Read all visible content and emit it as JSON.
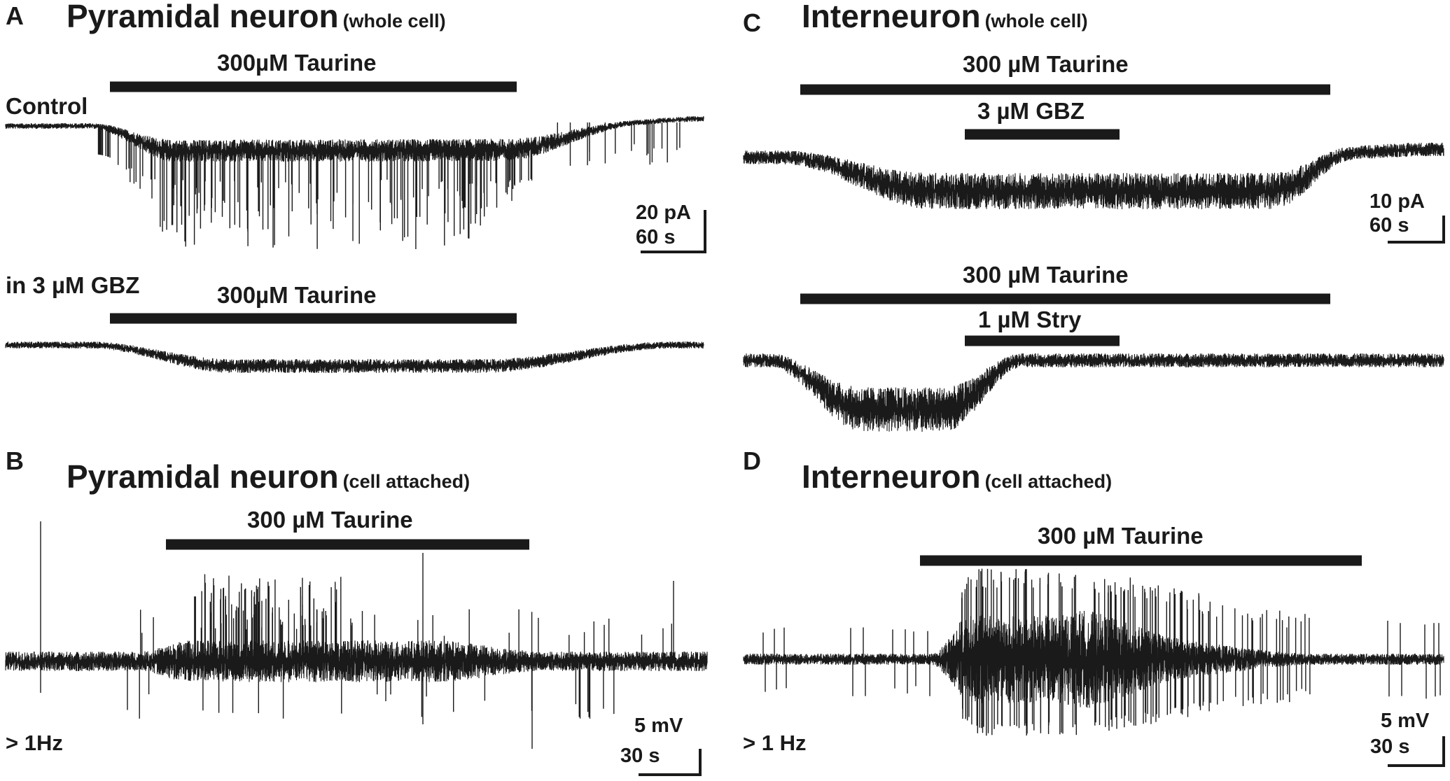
{
  "panels": {
    "a": {
      "letter": "A",
      "title": "Pyramidal neuron",
      "subtitle": "(whole cell)",
      "control_label": "Control",
      "gbz_label": "in 3 µM GBZ",
      "bar1": "300µM Taurine",
      "bar2": "300µM Taurine",
      "scale_y": "20 pA",
      "scale_x": "60 s"
    },
    "b": {
      "letter": "B",
      "title": "Pyramidal neuron",
      "subtitle": "(cell attached)",
      "bar": "300 µM Taurine",
      "freq": "> 1Hz",
      "scale_y": "5 mV",
      "scale_x": "30 s"
    },
    "c": {
      "letter": "C",
      "title": "Interneuron",
      "subtitle": "(whole cell)",
      "bar1": "300 µM Taurine",
      "bar1_inner": "3 µM GBZ",
      "bar2": "300 µM Taurine",
      "bar2_inner": "1 µM Stry",
      "scale_y": "10 pA",
      "scale_x": "60 s"
    },
    "d": {
      "letter": "D",
      "title": "Interneuron",
      "subtitle": "(cell attached)",
      "bar": "300 µM Taurine",
      "freq": "> 1 Hz",
      "scale_y": "5 mV",
      "scale_x": "30 s"
    }
  },
  "colors": {
    "ink": "#1a1a1a",
    "background": "#ffffff"
  }
}
